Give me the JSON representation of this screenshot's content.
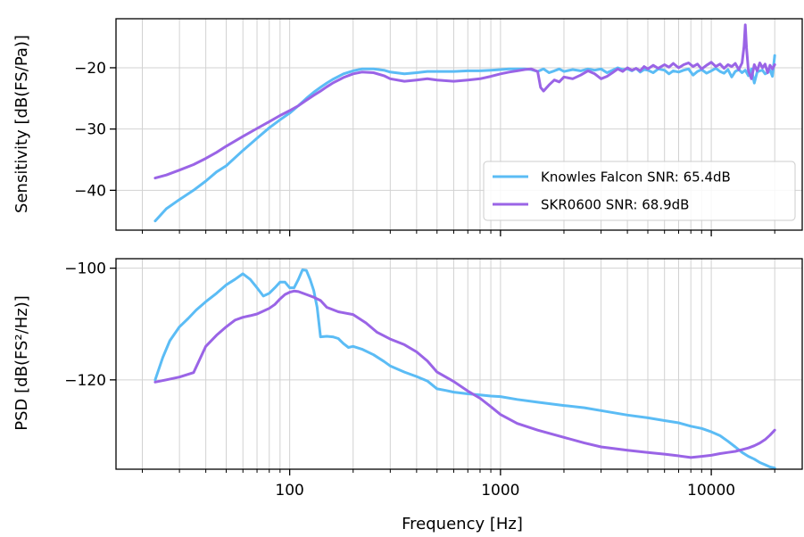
{
  "chart_data": [
    {
      "type": "line",
      "xscale": "log",
      "xlim": [
        15,
        27000
      ],
      "ylim": [
        -46.5,
        -12
      ],
      "xlabel": "",
      "ylabel": "Sensitivity [dB(FS/Pa)]",
      "yticks": [
        -40,
        -30,
        -20
      ],
      "ytick_labels": [
        "−40",
        "−30",
        "−20"
      ],
      "grid": true,
      "legend": "lower-right",
      "series": [
        {
          "name": "Knowles Falcon SNR: 65.4dB",
          "color": "#5bbcf5",
          "x": [
            23,
            26,
            30,
            35,
            40,
            45,
            50,
            60,
            70,
            80,
            90,
            100,
            110,
            120,
            130,
            140,
            150,
            160,
            180,
            200,
            220,
            250,
            280,
            300,
            350,
            400,
            450,
            500,
            600,
            700,
            800,
            900,
            1000,
            1100,
            1200,
            1300,
            1400,
            1500,
            1600,
            1700,
            1800,
            1900,
            2000,
            2200,
            2400,
            2600,
            2800,
            3000,
            3200,
            3400,
            3600,
            3800,
            4000,
            4200,
            4400,
            4600,
            4800,
            5000,
            5300,
            5600,
            6000,
            6300,
            6600,
            7000,
            7400,
            7800,
            8200,
            8600,
            9000,
            9500,
            10000,
            10500,
            11000,
            11500,
            12000,
            12500,
            13000,
            13500,
            14000,
            14500,
            15000,
            15500,
            16000,
            16500,
            17000,
            17500,
            18000,
            18500,
            19000,
            19500,
            20000
          ],
          "y": [
            -45,
            -43,
            -41.5,
            -40,
            -38.5,
            -37,
            -36,
            -33.5,
            -31.5,
            -29.8,
            -28.5,
            -27.4,
            -26.2,
            -25,
            -24,
            -23.2,
            -22.5,
            -21.9,
            -21,
            -20.5,
            -20.2,
            -20.2,
            -20.4,
            -20.7,
            -21,
            -20.8,
            -20.6,
            -20.6,
            -20.6,
            -20.5,
            -20.5,
            -20.4,
            -20.3,
            -20.2,
            -20.2,
            -20.2,
            -20.3,
            -20.6,
            -20.2,
            -20.8,
            -20.5,
            -20.2,
            -20.6,
            -20.3,
            -20.5,
            -20.2,
            -20.4,
            -20.2,
            -20.8,
            -20.4,
            -20,
            -20.3,
            -20.2,
            -20.5,
            -20.1,
            -20.7,
            -20.3,
            -20.4,
            -20.8,
            -20.2,
            -20.4,
            -21,
            -20.5,
            -20.7,
            -20.4,
            -20.2,
            -21.2,
            -20.6,
            -20.3,
            -20.9,
            -20.5,
            -20.1,
            -20.6,
            -20.9,
            -20.3,
            -21.5,
            -20.6,
            -20.3,
            -20.8,
            -20.4,
            -21.3,
            -20.2,
            -22.5,
            -20.7,
            -20.5,
            -20.4,
            -21,
            -20.8,
            -20.4,
            -21.4,
            -18
          ]
        },
        {
          "name": "SKR0600 SNR: 68.9dB",
          "color": "#9a64e6",
          "x": [
            23,
            26,
            30,
            35,
            40,
            45,
            50,
            60,
            70,
            80,
            90,
            100,
            110,
            120,
            130,
            140,
            150,
            160,
            180,
            200,
            220,
            250,
            280,
            300,
            350,
            400,
            450,
            500,
            600,
            700,
            800,
            900,
            1000,
            1100,
            1200,
            1300,
            1400,
            1500,
            1550,
            1600,
            1700,
            1800,
            1900,
            2000,
            2200,
            2400,
            2600,
            2800,
            3000,
            3200,
            3400,
            3600,
            3800,
            4000,
            4200,
            4400,
            4600,
            4800,
            5000,
            5300,
            5600,
            6000,
            6300,
            6600,
            7000,
            7400,
            7800,
            8200,
            8600,
            9000,
            9500,
            10000,
            10500,
            11000,
            11500,
            12000,
            12500,
            13000,
            13500,
            14000,
            14300,
            14500,
            14700,
            15000,
            15500,
            16000,
            16500,
            17000,
            17500,
            18000,
            18500,
            19000,
            19500,
            20000
          ],
          "y": [
            -38,
            -37.5,
            -36.7,
            -35.8,
            -34.8,
            -33.8,
            -32.8,
            -31.2,
            -29.9,
            -28.8,
            -27.8,
            -27,
            -26.2,
            -25.3,
            -24.5,
            -23.8,
            -23.1,
            -22.5,
            -21.6,
            -21,
            -20.7,
            -20.8,
            -21.3,
            -21.8,
            -22.2,
            -22,
            -21.8,
            -22,
            -22.2,
            -22,
            -21.8,
            -21.4,
            -21,
            -20.7,
            -20.5,
            -20.3,
            -20.2,
            -20.6,
            -23.2,
            -23.8,
            -22.8,
            -22,
            -22.3,
            -21.5,
            -21.8,
            -21.2,
            -20.5,
            -21,
            -21.8,
            -21.4,
            -20.8,
            -20.2,
            -20.6,
            -20,
            -20.4,
            -20.1,
            -20.5,
            -19.8,
            -20.2,
            -19.6,
            -20.1,
            -19.5,
            -19.9,
            -19.3,
            -20,
            -19.5,
            -19.2,
            -19.8,
            -19.4,
            -20.2,
            -19.6,
            -19.1,
            -19.8,
            -19.4,
            -20.1,
            -19.5,
            -19.8,
            -19.3,
            -20.3,
            -19.2,
            -16.5,
            -13,
            -16.8,
            -20.5,
            -21.8,
            -19.5,
            -20.5,
            -19.2,
            -20,
            -19.4,
            -20.8,
            -19.6,
            -20.2,
            -19.5
          ]
        }
      ]
    },
    {
      "type": "line",
      "xscale": "log",
      "xlim": [
        15,
        27000
      ],
      "ylim": [
        -136,
        -98.3
      ],
      "xlabel": "Frequency [Hz]",
      "ylabel": "PSD [dB(FS²/Hz)]",
      "xticks": [
        100,
        1000,
        10000
      ],
      "xtick_labels": [
        "100",
        "1000",
        "10000"
      ],
      "yticks": [
        -120,
        -100
      ],
      "ytick_labels": [
        "−120",
        "−100"
      ],
      "grid": true,
      "series": [
        {
          "name": "Knowles Falcon SNR: 65.4dB",
          "color": "#5bbcf5",
          "x": [
            23,
            25,
            27,
            30,
            33,
            36,
            40,
            45,
            50,
            55,
            60,
            65,
            70,
            75,
            80,
            85,
            90,
            95,
            100,
            105,
            110,
            115,
            120,
            125,
            130,
            135,
            140,
            150,
            160,
            170,
            180,
            190,
            200,
            220,
            250,
            280,
            300,
            350,
            400,
            450,
            500,
            550,
            600,
            700,
            800,
            900,
            1000,
            1200,
            1500,
            2000,
            2500,
            3000,
            4000,
            5000,
            6000,
            7000,
            8000,
            9000,
            10000,
            11000,
            12000,
            13000,
            14000,
            15000,
            16000,
            17000,
            18000,
            19000,
            20000
          ],
          "y": [
            -120,
            -116,
            -113,
            -110.5,
            -109,
            -107.5,
            -106,
            -104.5,
            -103,
            -102,
            -101,
            -102,
            -103.5,
            -105,
            -104.5,
            -103.5,
            -102.5,
            -102.5,
            -103.5,
            -103.5,
            -102,
            -100.3,
            -100.4,
            -102,
            -104,
            -107,
            -112.3,
            -112.2,
            -112.3,
            -112.6,
            -113.5,
            -114.2,
            -114,
            -114.5,
            -115.5,
            -116.7,
            -117.5,
            -118.6,
            -119.4,
            -120.2,
            -121.6,
            -121.9,
            -122.2,
            -122.5,
            -122.7,
            -122.9,
            -123,
            -123.5,
            -124,
            -124.6,
            -125,
            -125.5,
            -126.3,
            -126.8,
            -127.3,
            -127.7,
            -128.3,
            -128.7,
            -129.3,
            -130,
            -131,
            -132,
            -133,
            -133.7,
            -134.2,
            -134.8,
            -135.2,
            -135.6,
            -135.8
          ]
        },
        {
          "name": "SKR0600 SNR: 68.9dB",
          "color": "#9a64e6",
          "x": [
            23,
            26,
            30,
            35,
            40,
            45,
            50,
            55,
            60,
            65,
            70,
            75,
            80,
            85,
            90,
            95,
            100,
            105,
            110,
            120,
            130,
            140,
            150,
            170,
            200,
            230,
            260,
            300,
            350,
            400,
            450,
            500,
            600,
            700,
            800,
            900,
            1000,
            1200,
            1500,
            2000,
            2500,
            3000,
            4000,
            5000,
            6000,
            7000,
            8000,
            9000,
            10000,
            11000,
            12000,
            13000,
            14000,
            15000,
            16000,
            17000,
            18000,
            19000,
            20000
          ],
          "y": [
            -120.4,
            -120,
            -119.5,
            -118.7,
            -114,
            -112,
            -110.5,
            -109.3,
            -108.8,
            -108.5,
            -108.2,
            -107.7,
            -107.2,
            -106.5,
            -105.5,
            -104.7,
            -104.3,
            -104.1,
            -104.2,
            -104.7,
            -105.2,
            -105.8,
            -107,
            -107.8,
            -108.3,
            -109.8,
            -111.5,
            -112.7,
            -113.7,
            -115,
            -116.6,
            -118.6,
            -120.3,
            -122,
            -123.3,
            -124.8,
            -126.2,
            -127.8,
            -129,
            -130.3,
            -131.3,
            -132,
            -132.6,
            -133,
            -133.3,
            -133.6,
            -133.9,
            -133.7,
            -133.5,
            -133.2,
            -133,
            -132.8,
            -132.5,
            -132.2,
            -131.8,
            -131.3,
            -130.7,
            -129.9,
            -129
          ]
        }
      ]
    }
  ]
}
